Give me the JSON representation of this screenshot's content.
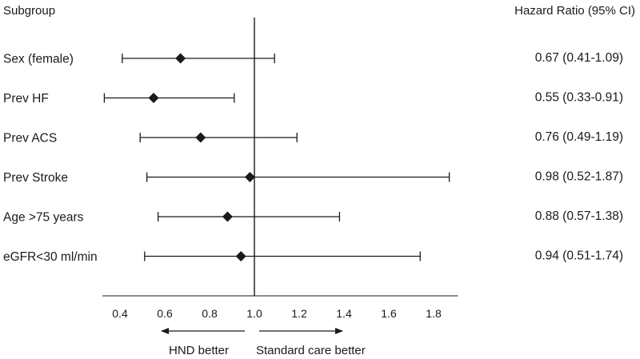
{
  "chart_data": {
    "type": "forest",
    "headers": {
      "left": "Subgroup",
      "right": "Hazard Ratio (95% CI)"
    },
    "reference_line": 1.0,
    "xlim": [
      0.35,
      1.88
    ],
    "xticks": [
      "0.4",
      "0.6",
      "0.8",
      "1.0",
      "1.2",
      "1.4",
      "1.6",
      "1.8"
    ],
    "rows": [
      {
        "label": "Sex (female)",
        "hr": 0.67,
        "lower": 0.41,
        "upper": 1.09,
        "text": "0.67 (0.41-1.09)"
      },
      {
        "label": "Prev HF",
        "hr": 0.55,
        "lower": 0.33,
        "upper": 0.91,
        "text": "0.55 (0.33-0.91)"
      },
      {
        "label": "Prev ACS",
        "hr": 0.76,
        "lower": 0.49,
        "upper": 1.19,
        "text": "0.76 (0.49-1.19)"
      },
      {
        "label": "Prev Stroke",
        "hr": 0.98,
        "lower": 0.52,
        "upper": 1.87,
        "text": "0.98 (0.52-1.87)"
      },
      {
        "label": "Age >75 years",
        "hr": 0.88,
        "lower": 0.57,
        "upper": 1.38,
        "text": "0.88 (0.57-1.38)"
      },
      {
        "label": "eGFR<30 ml/min",
        "hr": 0.94,
        "lower": 0.51,
        "upper": 1.74,
        "text": "0.94 (0.51-1.74)"
      }
    ],
    "direction_labels": {
      "left": "HND better",
      "right": "Standard care better"
    }
  }
}
